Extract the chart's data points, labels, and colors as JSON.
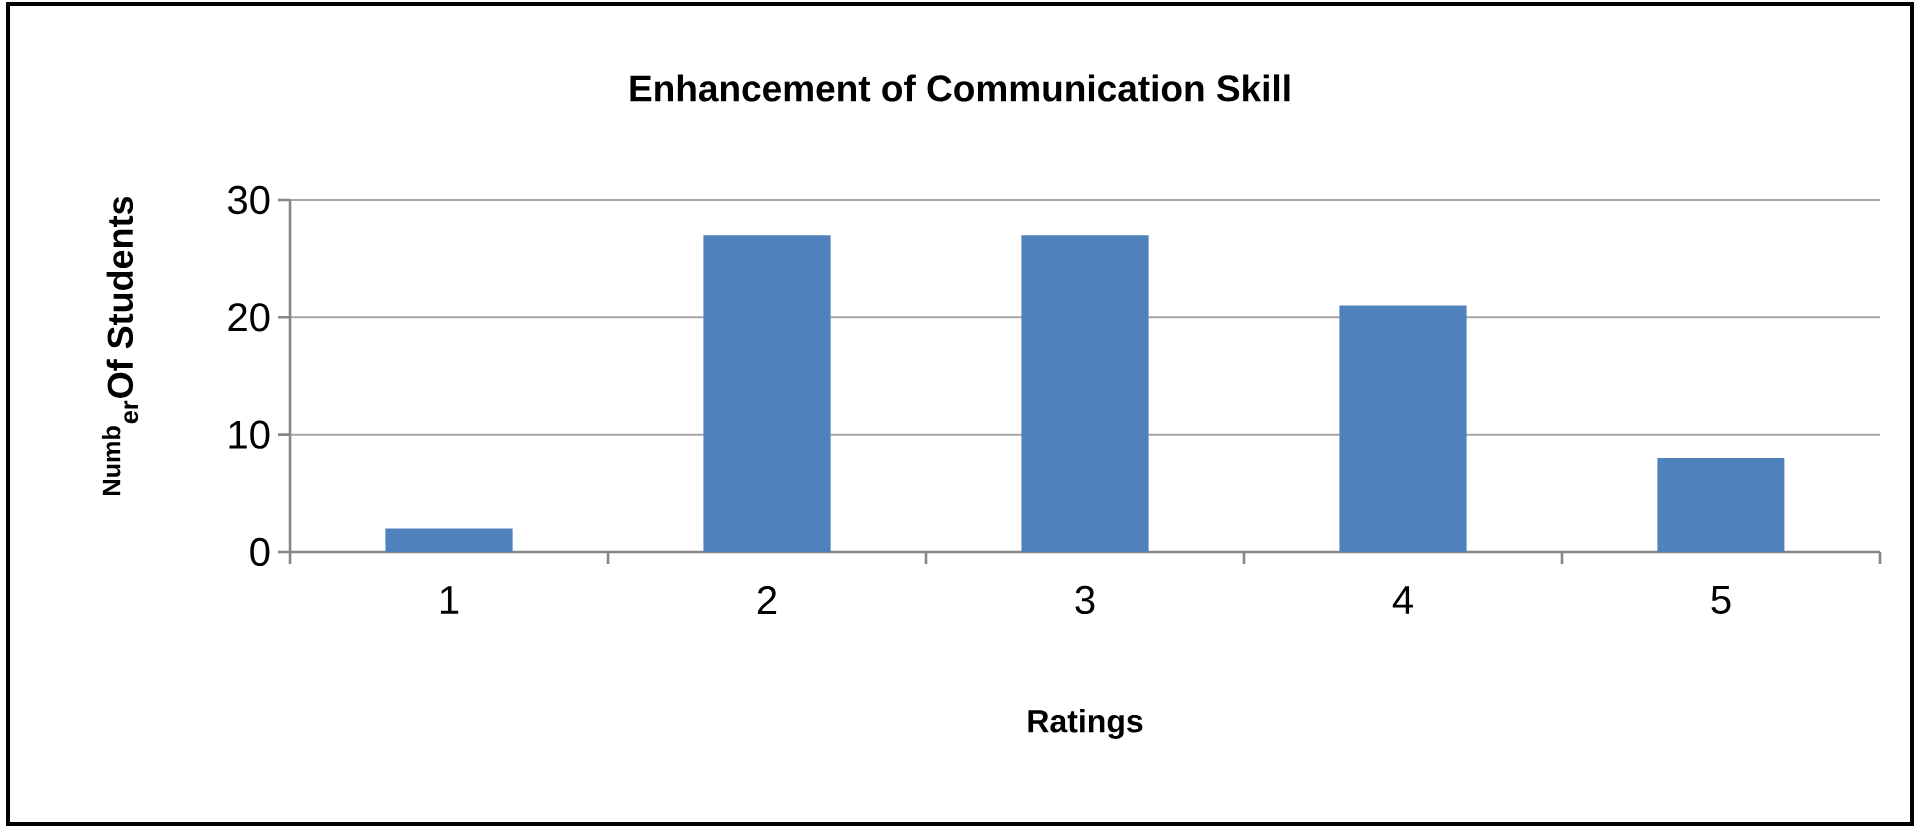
{
  "chart_data": {
    "type": "bar",
    "title": "Enhancement of Communication Skill",
    "xlabel": "Ratings",
    "ylabel": "$^{Numb}$$_{er}$Of Students",
    "categories": [
      "1",
      "2",
      "3",
      "4",
      "5"
    ],
    "values": [
      2,
      27,
      27,
      21,
      8
    ],
    "color": "#4f81bd",
    "ylim": [
      0,
      30
    ],
    "yticks": [
      0,
      10,
      20,
      30
    ],
    "grid": "y"
  }
}
